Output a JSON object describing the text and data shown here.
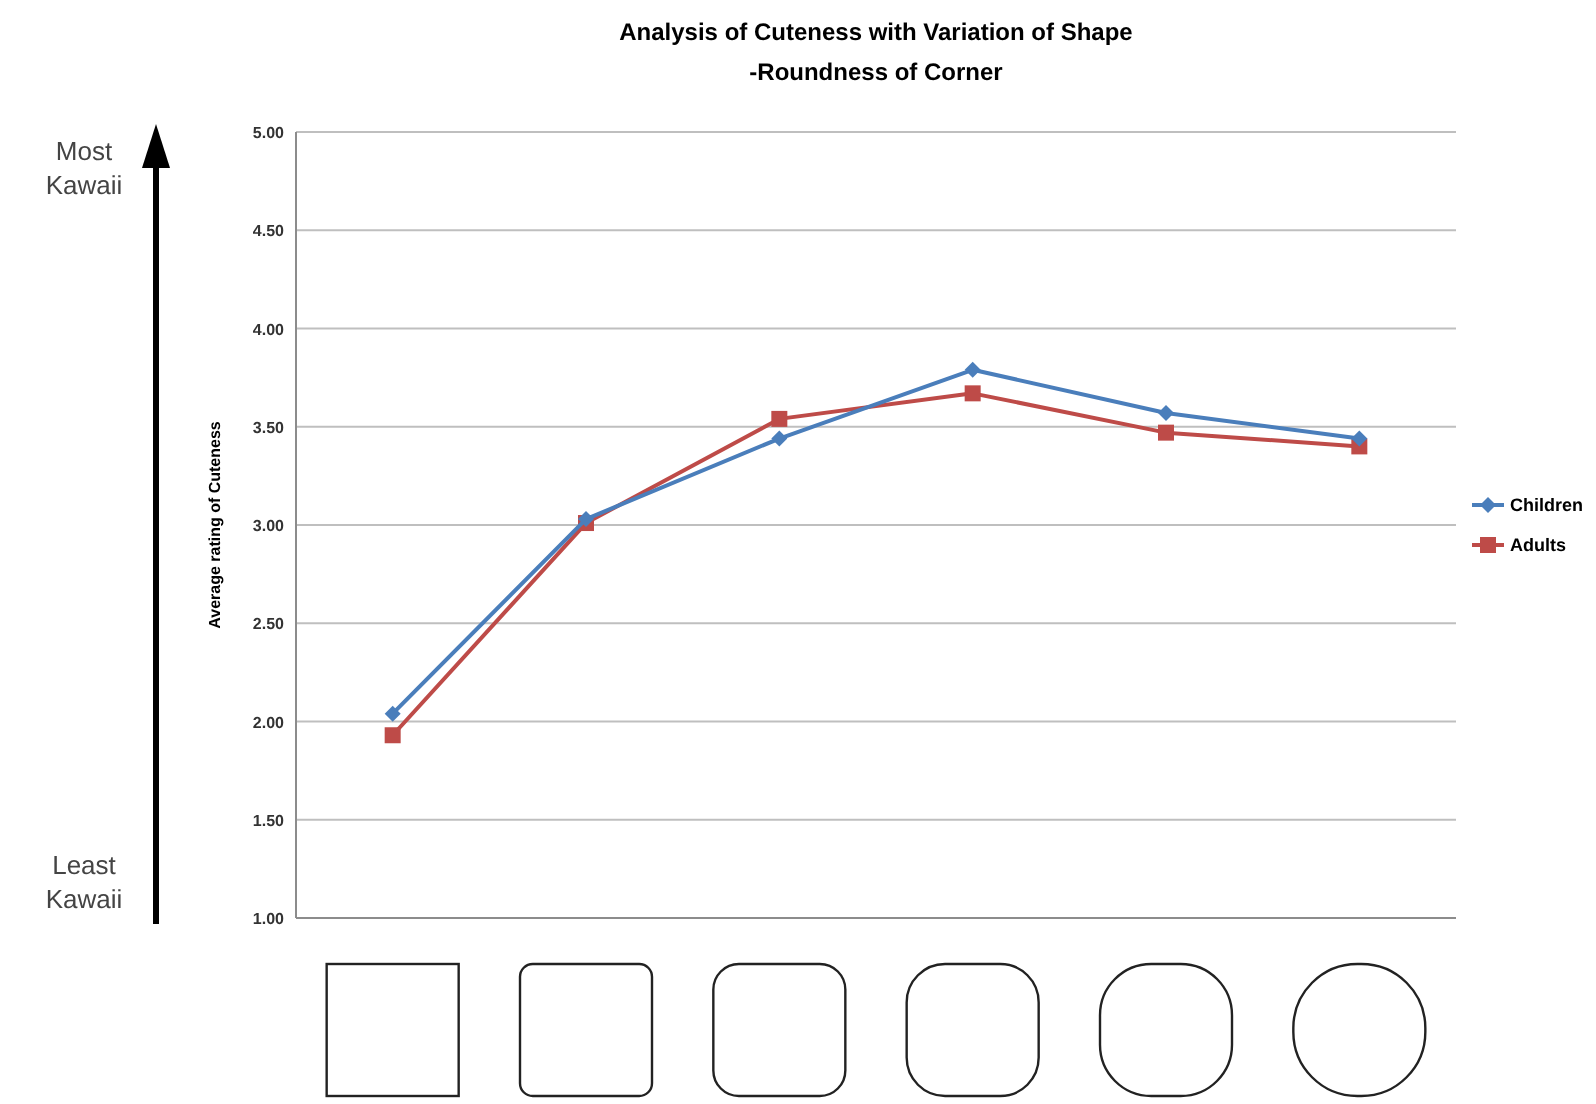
{
  "chart_data": {
    "type": "line",
    "title": "Analysis of Cuteness with Variation of Shape",
    "subtitle": "-Roundness of Corner",
    "ylabel": "Average rating of Cuteness",
    "categories": [
      null,
      null,
      null,
      null,
      null,
      null
    ],
    "series": [
      {
        "name": "Children",
        "color": "#4a7ebb",
        "marker": "diamond",
        "values": [
          2.04,
          3.03,
          3.44,
          3.79,
          3.57,
          3.44
        ]
      },
      {
        "name": "Adults",
        "color": "#be4b48",
        "marker": "square",
        "values": [
          1.93,
          3.01,
          3.54,
          3.67,
          3.47,
          3.4
        ]
      }
    ],
    "ylim": [
      1,
      5
    ],
    "yticks": [
      {
        "value": 1,
        "label": "1.00"
      },
      {
        "value": 1.5,
        "label": "1.50"
      },
      {
        "value": 2,
        "label": "2.00"
      },
      {
        "value": 2.5,
        "label": "2.50"
      },
      {
        "value": 3,
        "label": "3.00"
      },
      {
        "value": 3.5,
        "label": "3.50"
      },
      {
        "value": 4,
        "label": "4.00"
      },
      {
        "value": 4.5,
        "label": "4.50"
      },
      {
        "value": 5,
        "label": "5.00"
      }
    ],
    "grid": "y",
    "legend": "right",
    "annotations": [
      "Most Kawaii",
      "Least Kawaii"
    ]
  }
}
